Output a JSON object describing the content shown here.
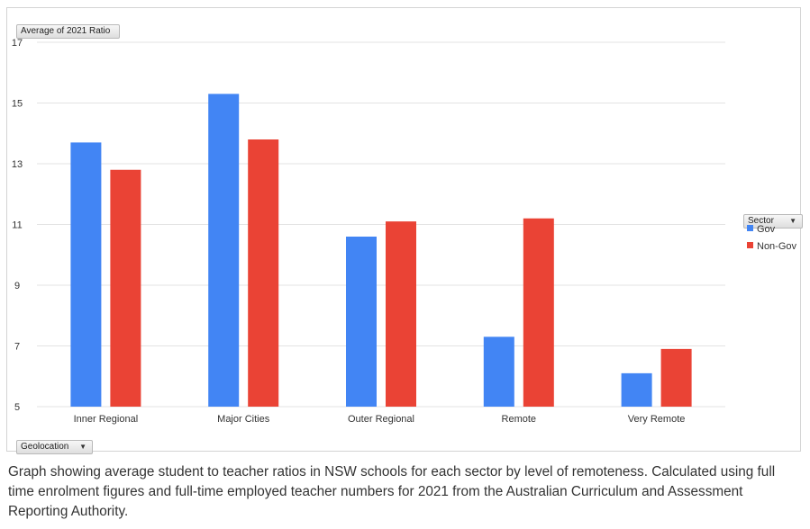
{
  "chart_data": {
    "type": "bar",
    "title": "",
    "value_field": "Average of 2021 Ratio",
    "row_field": "Geolocation",
    "column_field": "Sector",
    "categories": [
      "Inner Regional",
      "Major Cities",
      "Outer Regional",
      "Remote",
      "Very Remote"
    ],
    "series": [
      {
        "name": "Gov",
        "color": "#4285f4",
        "values": [
          13.7,
          15.3,
          10.6,
          7.3,
          6.1
        ]
      },
      {
        "name": "Non-Gov",
        "color": "#ea4335",
        "values": [
          12.8,
          13.8,
          11.1,
          11.2,
          6.9
        ]
      }
    ],
    "ylim": [
      5,
      17
    ],
    "yticks": [
      5,
      7,
      9,
      11,
      13,
      15,
      17
    ],
    "grid": true,
    "legend": "right"
  },
  "caption": "Graph showing average student to teacher ratios in NSW schools for each sector by level of remoteness. Calculated using full time enrolment figures and full-time employed teacher numbers for 2021 from the Australian Curriculum and Assessment Reporting Authority.",
  "dropdown_arrow_icon": "triangle-down"
}
